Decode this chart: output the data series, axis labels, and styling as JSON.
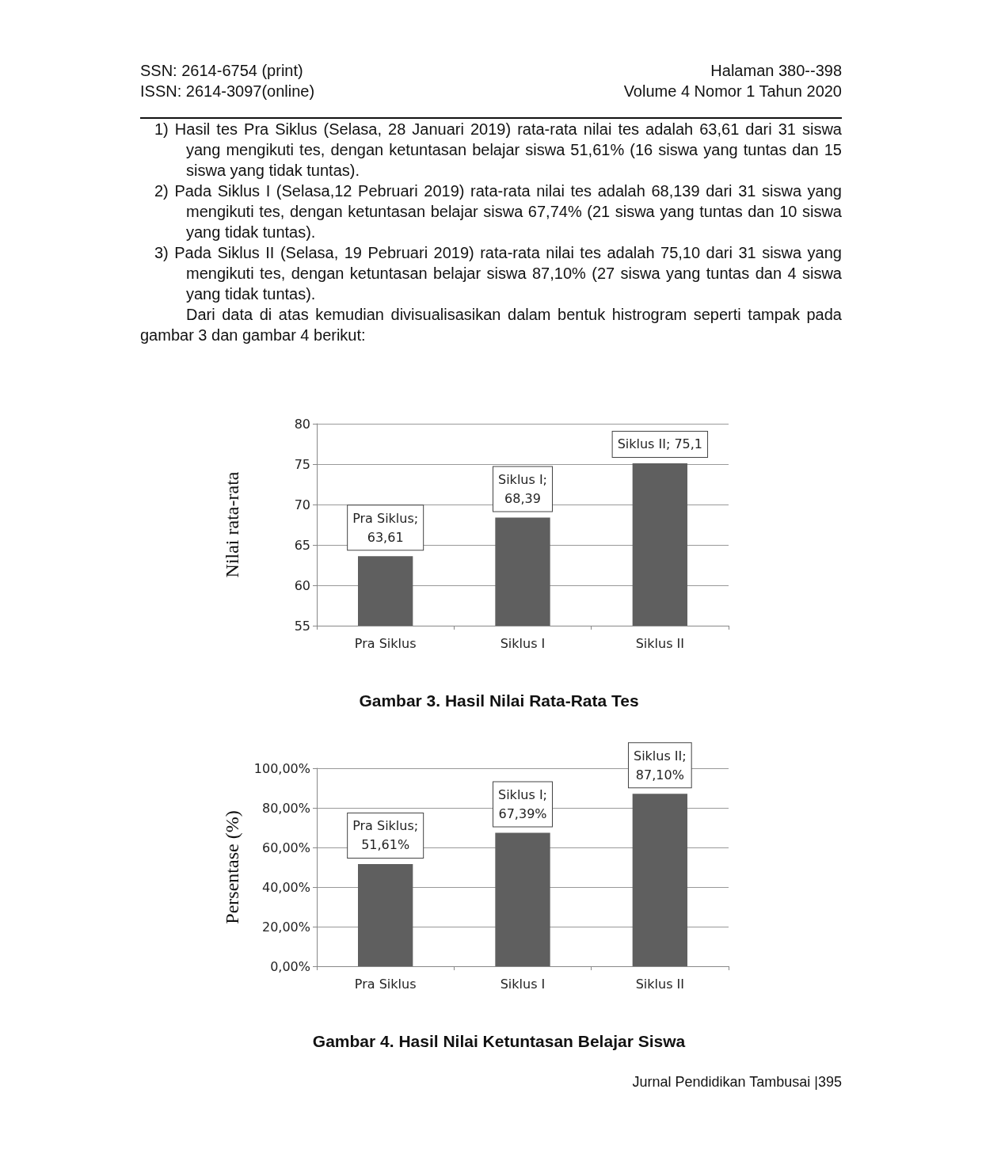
{
  "chart_data": [
    {
      "type": "bar",
      "title": "Gambar 3. Hasil Nilai Rata-Rata Tes",
      "ylabel": "Nilai rata-rata",
      "annotations": [
        "SSN: 2614-6754 (print)",
        "ISSN: 2614-3097(online)",
        "Halaman 380--398",
        "Volume 4 Nomor 1 Tahun 2020",
        "1) Hasil tes Pra Siklus (Selasa, 28 Januari 2019) rata-rata nilai tes adalah 63,61 dari 31 siswa yang mengikuti tes, dengan ketuntasan belajar siswa 51,61% (16 siswa yang tuntas dan 15 siswa yang tidak tuntas).",
        "2) Pada Siklus I (Selasa,12 Pebruari 2019) rata-rata nilai tes adalah 68,139 dari 31 siswa yang mengikuti tes, dengan ketuntasan belajar siswa 67,74% (21 siswa yang tuntas dan 10 siswa yang tidak tuntas).",
        "3) Pada Siklus II (Selasa, 19 Pebruari 2019) rata-rata nilai tes adalah 75,10 dari 31 siswa yang mengikuti tes, dengan ketuntasan belajar siswa 87,10% (27 siswa yang tuntas dan 4 siswa yang tidak tuntas).",
        "Dari data di atas kemudian divisualisasikan dalam bentuk histrogram seperti tampak pada gambar 3 dan gambar 4 berikut:"
      ],
      "categories": [
        "Pra Siklus",
        "Siklus I",
        "Siklus II"
      ],
      "values": [
        63.61,
        68.39,
        75.1
      ],
      "color": "#5f5f5f",
      "value_labels": [
        "Pra Siklus;\n63,61",
        "Siklus I;\n68,39",
        "Siklus II; 75,1"
      ],
      "ylim": [
        55,
        80
      ],
      "yticks": [
        55,
        60,
        65,
        70,
        75,
        80
      ],
      "grid": "y"
    },
    {
      "type": "bar",
      "title": "Gambar 4. Hasil Nilai Ketuntasan Belajar Siswa",
      "ylabel": "Persentase (%)",
      "annotations": [
        "Jurnal Pendidikan Tambusai |395"
      ],
      "categories": [
        "Pra Siklus",
        "Siklus I",
        "Siklus II"
      ],
      "values": [
        51.61,
        67.39,
        87.1
      ],
      "color": "#5f5f5f",
      "value_labels": [
        "Pra Siklus;\n51,61%",
        "Siklus I;\n67,39%",
        "Siklus II;\n87,10%"
      ],
      "ylim": [
        0,
        100
      ],
      "yticks": [
        {
          "value": 0,
          "label": "0,00%"
        },
        {
          "value": 20,
          "label": "20,00%"
        },
        {
          "value": 40,
          "label": "40,00%"
        },
        {
          "value": 60,
          "label": "60,00%"
        },
        {
          "value": 80,
          "label": "80,00%"
        },
        {
          "value": 100,
          "label": "100,00%"
        }
      ],
      "grid": "y"
    }
  ]
}
